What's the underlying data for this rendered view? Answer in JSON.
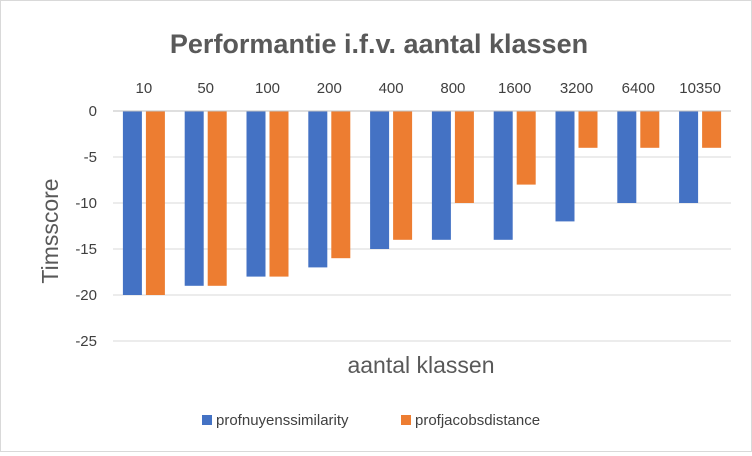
{
  "chart_data": {
    "type": "bar",
    "title": "Performantie i.f.v. aantal klassen",
    "xlabel": "aantal klassen",
    "ylabel": "Timsscore",
    "categories": [
      "10",
      "50",
      "100",
      "200",
      "400",
      "800",
      "1600",
      "3200",
      "6400",
      "10350"
    ],
    "series": [
      {
        "name": "profnuyenssimilarity",
        "color": "#4472c4",
        "values": [
          -20,
          -19,
          -18,
          -17,
          -15,
          -14,
          -14,
          -12,
          -10,
          -10
        ]
      },
      {
        "name": "profjacobsdistance",
        "color": "#ed7d31",
        "values": [
          -20,
          -19,
          -18,
          -16,
          -14,
          -10,
          -8,
          -4,
          -4,
          -4
        ]
      }
    ],
    "ylim": [
      -25,
      0
    ],
    "yticks": [
      0,
      -5,
      -10,
      -15,
      -20,
      -25
    ],
    "ytick_labels": [
      "0",
      "-5",
      "-10",
      "-15",
      "-20",
      "-25"
    ],
    "category_axis_position": "top",
    "grid": true,
    "legend": "bottom"
  }
}
